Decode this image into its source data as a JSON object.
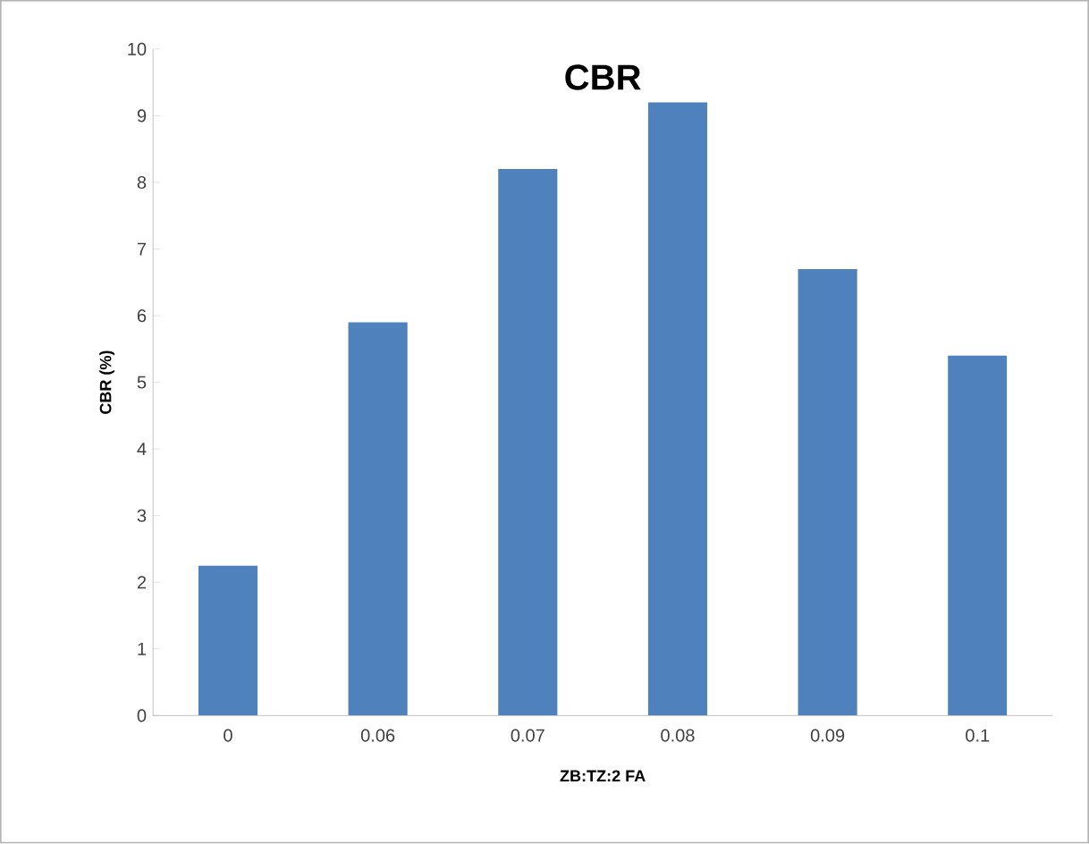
{
  "chart_data": {
    "type": "bar",
    "title": "CBR",
    "xlabel": "ZB:TZ:2 FA",
    "ylabel": "CBR (%)",
    "categories": [
      "0",
      "0.06",
      "0.07",
      "0.08",
      "0.09",
      "0.1"
    ],
    "values": [
      2.25,
      5.9,
      8.2,
      9.2,
      6.7,
      5.4
    ],
    "color": "#4f81bd",
    "ylim": [
      0,
      10
    ],
    "yticks": [
      0,
      1,
      2,
      3,
      4,
      5,
      6,
      7,
      8,
      9,
      10
    ],
    "grid": false
  }
}
